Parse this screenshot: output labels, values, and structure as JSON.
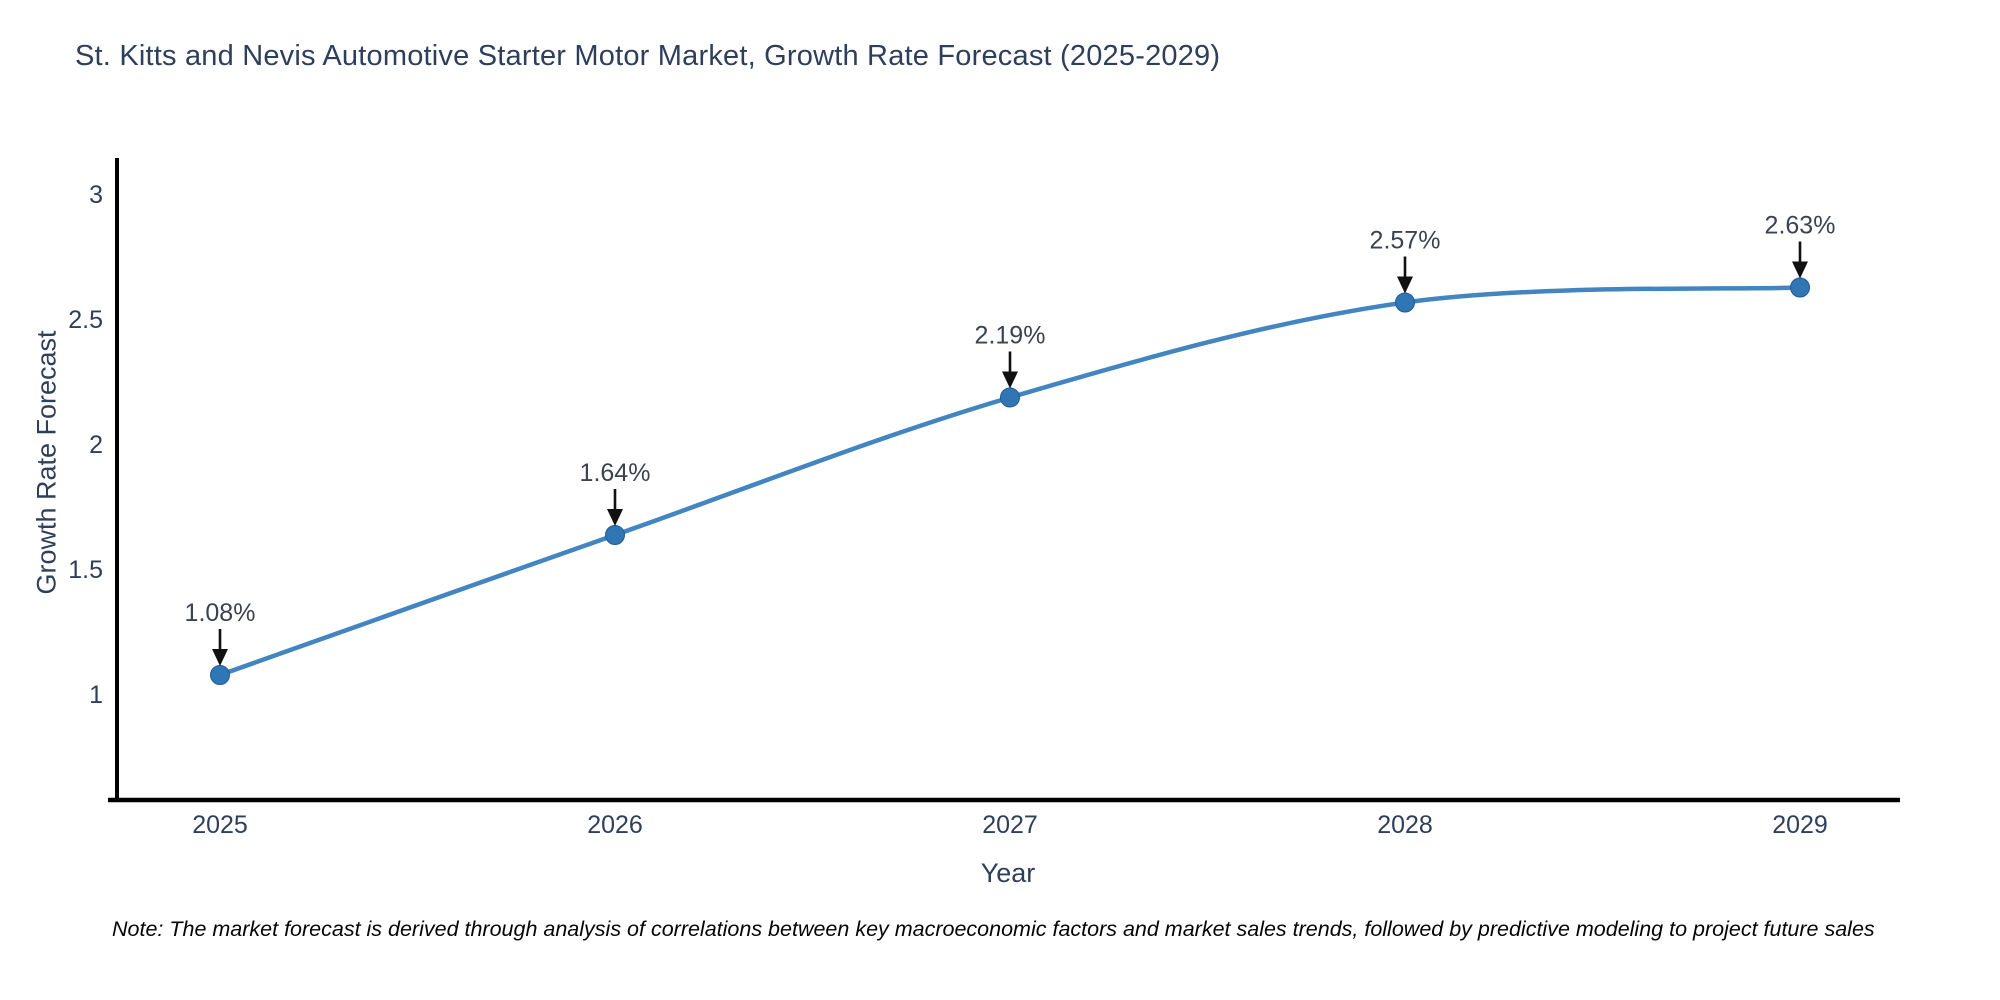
{
  "note": {
    "text": "Note: The market forecast is derived through analysis of correlations between key macroeconomic factors and market sales trends, followed by predictive modeling to project future sales"
  },
  "chart_data": {
    "type": "line",
    "title": "St. Kitts and Nevis Automotive Starter Motor Market, Growth Rate Forecast (2025-2029)",
    "xlabel": "Year",
    "ylabel": "Growth Rate Forecast",
    "categories": [
      "2025",
      "2026",
      "2027",
      "2028",
      "2029"
    ],
    "values": [
      1.08,
      1.64,
      2.19,
      2.57,
      2.63
    ],
    "point_labels": [
      "1.08%",
      "1.64%",
      "2.19%",
      "2.57%",
      "2.63%"
    ],
    "series_name": "Growth Rate Forecast",
    "line_shape": "spline",
    "grid": false,
    "legend": "none",
    "yticks": [
      3,
      2.5,
      2,
      1.5,
      1
    ],
    "ytick_labels": [
      "3",
      "2.5",
      "2",
      "1.5",
      "1"
    ],
    "ylim": [
      0.58,
      3.15
    ],
    "xlim": [
      2024.74,
      2029.25
    ],
    "colors": {
      "line": "#4285c0",
      "marker_fill": "#3076b5",
      "marker_stroke": "#205c95",
      "axis_line": "#000000",
      "tick_text": "#2e3f5c",
      "annotation_text": "#3c4350",
      "annotation_arrow": "#111111",
      "background": "#ffffff"
    }
  }
}
